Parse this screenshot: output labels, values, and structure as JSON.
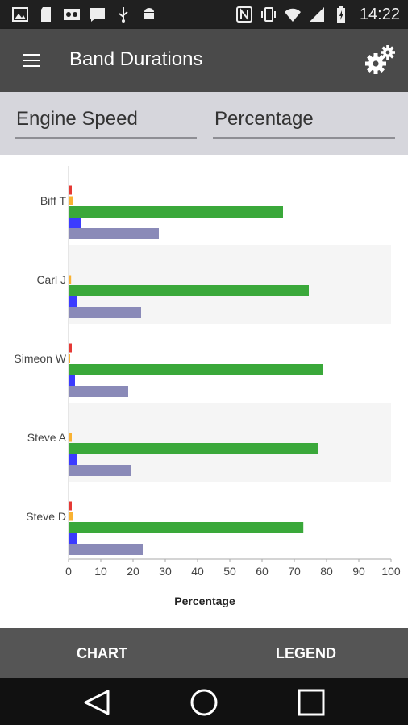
{
  "status_bar": {
    "time": "14:22",
    "icons_left": [
      "image-icon",
      "sd-card-icon",
      "voicemail-icon",
      "message-icon",
      "usb-icon",
      "android-icon"
    ],
    "icons_right": [
      "nfc-icon",
      "vibrate-icon",
      "wifi-icon",
      "signal-icon",
      "battery-icon"
    ]
  },
  "app_bar": {
    "title": "Band Durations",
    "menu_icon": "hamburger-menu-icon",
    "settings_icon": "gear-icon"
  },
  "selectors": {
    "left": "Engine Speed",
    "right": "Percentage"
  },
  "chart_data": {
    "type": "bar",
    "orientation": "horizontal",
    "categories": [
      "Biff T",
      "Carl J",
      "Simeon W",
      "Steve A",
      "Steve D"
    ],
    "series": [
      {
        "color": "#e53935",
        "values": [
          1,
          0,
          1,
          0,
          1
        ]
      },
      {
        "color": "#f9b233",
        "values": [
          1.5,
          0.8,
          0.5,
          1,
          1.5
        ]
      },
      {
        "color": "#3aa83a",
        "values": [
          66.5,
          74.5,
          79,
          77.5,
          72.8
        ]
      },
      {
        "color": "#3b3bff",
        "values": [
          4,
          2.5,
          2,
          2.5,
          2.5
        ]
      },
      {
        "color": "#8a8ab8",
        "values": [
          28,
          22.5,
          18.5,
          19.5,
          23
        ]
      }
    ],
    "x_ticks": [
      "0",
      "10",
      "20",
      "30",
      "40",
      "50",
      "60",
      "70",
      "80",
      "90",
      "100"
    ],
    "xlim": [
      0,
      100
    ],
    "xlabel": "Percentage",
    "ylabel": "",
    "title": "",
    "grid": false,
    "alternating_band_color": "#f5f5f5"
  },
  "bottom_bar": {
    "chart_label": "CHART",
    "legend_label": "LEGEND"
  },
  "nav_bar": {
    "icons": [
      "back-icon",
      "home-icon",
      "recent-apps-icon"
    ]
  }
}
